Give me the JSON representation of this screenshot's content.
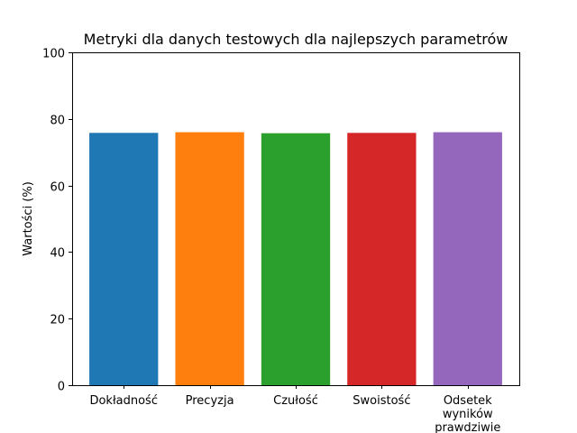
{
  "chart_data": {
    "type": "bar",
    "title": "Metryki dla danych testowych dla najlepszych parametrów",
    "xlabel": "",
    "ylabel": "Wartości (%)",
    "ylim": [
      0,
      100
    ],
    "yticks": [
      0,
      20,
      40,
      60,
      80,
      100
    ],
    "grid": false,
    "categories": [
      "Dokładność",
      "Precyzja",
      "Czułość",
      "Swoistość",
      "Odsetek\nwyników\nprawdziwie"
    ],
    "values": [
      75.8,
      76.0,
      75.7,
      75.8,
      76.0
    ],
    "colors": [
      "#1f77b4",
      "#ff7f0e",
      "#2ca02c",
      "#d62728",
      "#9467bd"
    ]
  }
}
